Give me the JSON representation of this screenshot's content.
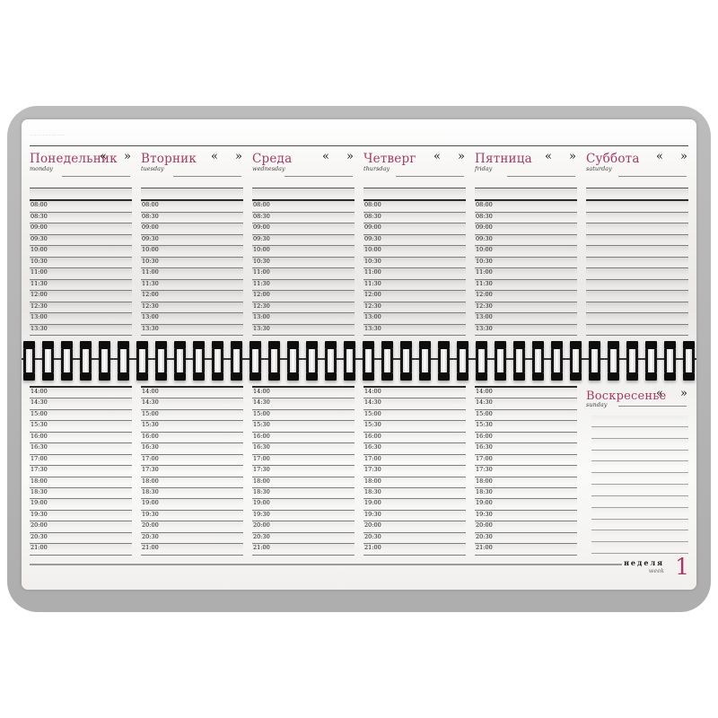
{
  "planner": {
    "corner_note": "·················",
    "nav": {
      "prev": "«",
      "next": "»"
    },
    "days": [
      {
        "name": "Понедельник",
        "en": "monday"
      },
      {
        "name": "Вторник",
        "en": "tuesday"
      },
      {
        "name": "Среда",
        "en": "wednesday"
      },
      {
        "name": "Четверг",
        "en": "thursday"
      },
      {
        "name": "Пятница",
        "en": "friday"
      },
      {
        "name": "Суббота",
        "en": "saturday"
      },
      {
        "name": "Воскресенье",
        "en": "sunday"
      }
    ],
    "morning_times": [
      "08:00",
      "08:30",
      "09:00",
      "09:30",
      "10:00",
      "10:30",
      "11:00",
      "11:30",
      "12:00",
      "12:30",
      "13:00",
      "13:30"
    ],
    "afternoon_times": [
      "14:00",
      "14:30",
      "15:00",
      "15:30",
      "16:00",
      "16:30",
      "17:00",
      "17:30",
      "18:00",
      "18:30",
      "19:00",
      "19:30",
      "20:00",
      "20:30",
      "21:00"
    ],
    "sunday_blank_lines": 12,
    "saturday_blank_rows": 12,
    "binding_loop_count": 36,
    "footer": {
      "week_label": "неделя",
      "week_en": "week",
      "week_number": "1"
    }
  },
  "colors": {
    "accent": "#a53a63",
    "pad": "#b4b4b4",
    "paper": "#f1f0ee",
    "line_dark": "#2b2b2b",
    "line_mid": "#7e7e7e"
  }
}
